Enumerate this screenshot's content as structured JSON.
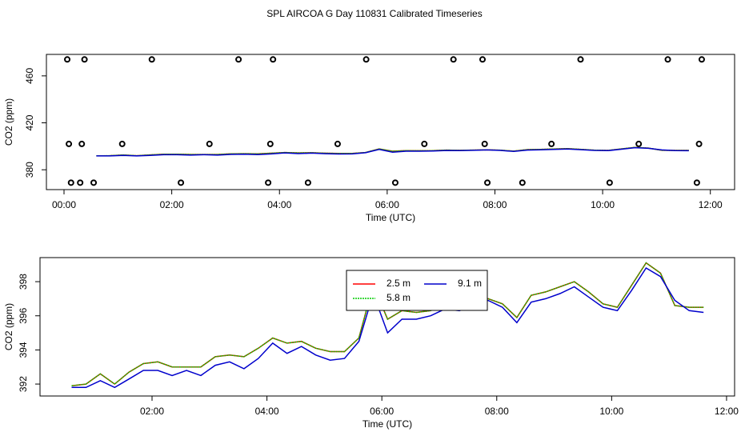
{
  "chart_data": [
    {
      "type": "scatter",
      "title": "SPL AIRCOA G  Day 110831  Calibrated Timeseries",
      "x_label": "Time (UTC)",
      "y_label": "CO2 (ppm)",
      "xlim": [
        -0.327,
        12.45
      ],
      "ylim": [
        363.1,
        478.3
      ],
      "xticks": [
        {
          "value": 0,
          "label": "00:00"
        },
        {
          "value": 2,
          "label": "02:00"
        },
        {
          "value": 4,
          "label": "04:00"
        },
        {
          "value": 6,
          "label": "06:00"
        },
        {
          "value": 8,
          "label": "08:00"
        },
        {
          "value": 10,
          "label": "10:00"
        },
        {
          "value": 12,
          "label": "12:00"
        }
      ],
      "yticks": [
        380,
        420,
        460
      ],
      "color": "#000000",
      "points": {
        "x": [
          0.06,
          0.38,
          1.63,
          3.24,
          3.88,
          5.61,
          7.23,
          7.77,
          9.59,
          11.21,
          11.84,
          0.09,
          0.33,
          1.08,
          2.7,
          3.83,
          5.08,
          6.69,
          7.81,
          9.05,
          10.67,
          11.79,
          0.13,
          0.3,
          0.55,
          2.17,
          3.79,
          4.53,
          6.15,
          7.86,
          8.51,
          10.13,
          11.75
        ],
        "y": [
          474,
          474,
          474,
          474,
          474,
          474,
          474,
          474,
          474,
          474,
          474,
          402,
          402,
          402,
          402,
          402,
          402,
          402,
          402,
          402,
          402,
          402,
          369,
          369,
          369,
          369,
          369,
          369,
          369,
          369,
          369,
          369,
          369
        ]
      }
    },
    {
      "type": "line",
      "x_label": "Time (UTC)",
      "y_label": "CO2 (ppm)",
      "xlim": [
        0.05,
        12.14
      ],
      "ylim": [
        391.3,
        399.41
      ],
      "xticks": [
        {
          "value": 2,
          "label": "02:00"
        },
        {
          "value": 4,
          "label": "04:00"
        },
        {
          "value": 6,
          "label": "06:00"
        },
        {
          "value": 8,
          "label": "08:00"
        },
        {
          "value": 10,
          "label": "10:00"
        },
        {
          "value": 12,
          "label": "12:00"
        }
      ],
      "yticks": [
        392,
        394,
        396,
        398
      ],
      "x": [
        0.6,
        0.85,
        1.1,
        1.35,
        1.6,
        1.85,
        2.1,
        2.35,
        2.6,
        2.85,
        3.1,
        3.35,
        3.6,
        3.85,
        4.1,
        4.35,
        4.6,
        4.85,
        5.1,
        5.35,
        5.6,
        5.85,
        6.1,
        6.35,
        6.6,
        6.85,
        7.1,
        7.35,
        7.6,
        7.85,
        8.1,
        8.35,
        8.6,
        8.85,
        9.1,
        9.35,
        9.6,
        9.85,
        10.1,
        10.35,
        10.6,
        10.85,
        11.1,
        11.35,
        11.6
      ],
      "series": [
        {
          "name": "2.5 m",
          "color": "#ff0000",
          "values": [
            391.9,
            392.0,
            392.6,
            392.0,
            392.7,
            393.2,
            393.3,
            393.0,
            393.0,
            393.0,
            393.6,
            393.7,
            393.6,
            394.1,
            394.7,
            394.4,
            394.5,
            394.1,
            393.9,
            393.9,
            394.7,
            397.8,
            395.8,
            396.3,
            396.2,
            396.3,
            396.8,
            396.6,
            396.8,
            397.0,
            396.7,
            395.9,
            397.2,
            397.4,
            397.7,
            398.0,
            397.4,
            396.7,
            396.5,
            397.8,
            399.1,
            398.5,
            396.6,
            396.5,
            396.5
          ]
        },
        {
          "name": "5.8 m",
          "color": "#00cc00",
          "values": [
            391.9,
            392.0,
            392.6,
            392.0,
            392.7,
            393.2,
            393.3,
            393.0,
            393.0,
            393.0,
            393.6,
            393.7,
            393.6,
            394.1,
            394.7,
            394.4,
            394.5,
            394.1,
            393.9,
            393.9,
            394.7,
            397.8,
            395.8,
            396.3,
            396.2,
            396.3,
            396.8,
            396.6,
            396.8,
            397.0,
            396.7,
            395.9,
            397.2,
            397.4,
            397.7,
            398.0,
            397.4,
            396.7,
            396.5,
            397.8,
            399.1,
            398.5,
            396.6,
            396.5,
            396.5
          ]
        },
        {
          "name": "9.1 m",
          "color": "#0000cc",
          "values": [
            391.8,
            391.8,
            392.2,
            391.8,
            392.3,
            392.8,
            392.8,
            392.5,
            392.8,
            392.5,
            393.1,
            393.3,
            392.9,
            393.5,
            394.4,
            393.8,
            394.2,
            393.7,
            393.4,
            393.5,
            394.5,
            397.3,
            395.0,
            395.8,
            395.8,
            396.0,
            396.4,
            396.3,
            396.6,
            396.9,
            396.5,
            395.6,
            396.8,
            397.0,
            397.3,
            397.7,
            397.1,
            396.5,
            396.3,
            397.5,
            398.8,
            398.3,
            396.9,
            396.3,
            396.2
          ]
        }
      ]
    }
  ]
}
